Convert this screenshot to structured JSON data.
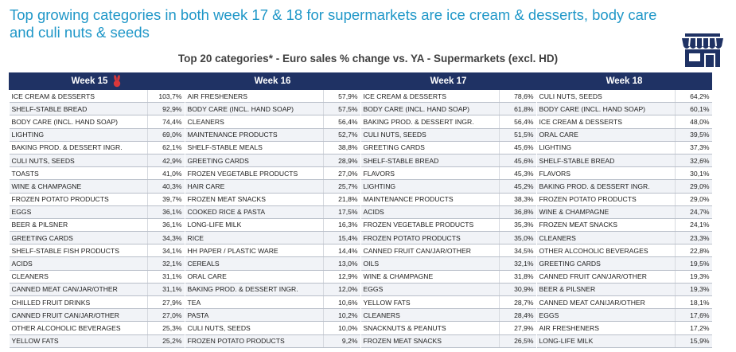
{
  "headline": "Top growing categories in both week 17 & 18 for supermarkets are ice cream & desserts, body care and culi nuts & seeds",
  "chart_data": {
    "type": "table",
    "title": "Top 20 categories* - Euro sales % change vs. YA - Supermarkets (excl. HD)",
    "weeks": [
      {
        "label": "Week 15",
        "rows": [
          {
            "category": "ICE CREAM & DESSERTS",
            "value": "103,7%"
          },
          {
            "category": "SHELF-STABLE BREAD",
            "value": "92,9%"
          },
          {
            "category": "BODY CARE (incl. hand soap)",
            "value": "74,4%"
          },
          {
            "category": "LIGHTING",
            "value": "69,0%"
          },
          {
            "category": "BAKING PROD. & DESSERT INGR.",
            "value": "62,1%"
          },
          {
            "category": "CULI NUTS, SEEDS",
            "value": "42,9%"
          },
          {
            "category": "TOASTS",
            "value": "41,0%"
          },
          {
            "category": "WINE & CHAMPAGNE",
            "value": "40,3%"
          },
          {
            "category": "FROZEN POTATO PRODUCTS",
            "value": "39,7%"
          },
          {
            "category": "EGGS",
            "value": "36,1%"
          },
          {
            "category": "BEER & PILSNER",
            "value": "36,1%"
          },
          {
            "category": "GREETING CARDS",
            "value": "34,3%"
          },
          {
            "category": "SHELF-STABLE FISH PRODUCTS",
            "value": "34,1%"
          },
          {
            "category": "ACIDS",
            "value": "32,1%"
          },
          {
            "category": "CLEANERS",
            "value": "31,1%"
          },
          {
            "category": "CANNED MEAT CAN/JAR/OTHER",
            "value": "31,1%"
          },
          {
            "category": "CHILLED FRUIT DRINKS",
            "value": "27,9%"
          },
          {
            "category": "CANNED FRUIT CAN/JAR/OTHER",
            "value": "27,0%"
          },
          {
            "category": "OTHER ALCOHOLIC BEVERAGES",
            "value": "25,3%"
          },
          {
            "category": "YELLOW FATS",
            "value": "25,2%"
          }
        ]
      },
      {
        "label": "Week 16",
        "rows": [
          {
            "category": "AIR FRESHENERS",
            "value": "57,9%"
          },
          {
            "category": "BODY CARE (incl. hand soap)",
            "value": "57,5%"
          },
          {
            "category": "CLEANERS",
            "value": "56,4%"
          },
          {
            "category": "MAINTENANCE PRODUCTS",
            "value": "52,7%"
          },
          {
            "category": "SHELF-STABLE MEALS",
            "value": "38,8%"
          },
          {
            "category": "GREETING CARDS",
            "value": "28,9%"
          },
          {
            "category": "FROZEN VEGETABLE PRODUCTS",
            "value": "27,0%"
          },
          {
            "category": "HAIR CARE",
            "value": "25,7%"
          },
          {
            "category": "FROZEN MEAT SNACKS",
            "value": "21,8%"
          },
          {
            "category": "COOKED RICE & PASTA",
            "value": "17,5%"
          },
          {
            "category": "LONG-LIFE MILK",
            "value": "16,3%"
          },
          {
            "category": "RICE",
            "value": "15,4%"
          },
          {
            "category": "HH PAPER / PLASTIC WARE",
            "value": "14,4%"
          },
          {
            "category": "CEREALS",
            "value": "13,0%"
          },
          {
            "category": "ORAL CARE",
            "value": "12,9%"
          },
          {
            "category": "BAKING PROD. & DESSERT INGR.",
            "value": "12,0%"
          },
          {
            "category": "TEA",
            "value": "10,6%"
          },
          {
            "category": "PASTA",
            "value": "10,2%"
          },
          {
            "category": "CULI NUTS, SEEDS",
            "value": "10,0%"
          },
          {
            "category": "FROZEN POTATO PRODUCTS",
            "value": "9,2%"
          }
        ]
      },
      {
        "label": "Week 17",
        "rows": [
          {
            "category": "ICE CREAM & DESSERTS",
            "value": "78,6%"
          },
          {
            "category": "BODY CARE (incl. hand soap)",
            "value": "61,8%"
          },
          {
            "category": "BAKING PROD. & DESSERT INGR.",
            "value": "56,4%"
          },
          {
            "category": "CULI NUTS, SEEDS",
            "value": "51,5%"
          },
          {
            "category": "GREETING CARDS",
            "value": "45,6%"
          },
          {
            "category": "SHELF-STABLE BREAD",
            "value": "45,6%"
          },
          {
            "category": "FLAVORS",
            "value": "45,3%"
          },
          {
            "category": "LIGHTING",
            "value": "45,2%"
          },
          {
            "category": "MAINTENANCE PRODUCTS",
            "value": "38,3%"
          },
          {
            "category": "ACIDS",
            "value": "36,8%"
          },
          {
            "category": "FROZEN VEGETABLE PRODUCTS",
            "value": "35,3%"
          },
          {
            "category": "FROZEN POTATO PRODUCTS",
            "value": "35,0%"
          },
          {
            "category": "CANNED FRUIT CAN/JAR/OTHER",
            "value": "34,5%"
          },
          {
            "category": "OILS",
            "value": "32,1%"
          },
          {
            "category": "WINE & CHAMPAGNE",
            "value": "31,8%"
          },
          {
            "category": "EGGS",
            "value": "30,9%"
          },
          {
            "category": "YELLOW FATS",
            "value": "28,7%"
          },
          {
            "category": "CLEANERS",
            "value": "28,4%"
          },
          {
            "category": "SNACKNUTS & PEANUTS",
            "value": "27,9%"
          },
          {
            "category": "FROZEN MEAT SNACKS",
            "value": "26,5%"
          }
        ]
      },
      {
        "label": "Week 18",
        "rows": [
          {
            "category": "CULI NUTS, SEEDS",
            "value": "64,2%"
          },
          {
            "category": "BODY CARE (incl. hand soap)",
            "value": "60,1%"
          },
          {
            "category": "ICE CREAM & DESSERTS",
            "value": "48,0%"
          },
          {
            "category": "ORAL CARE",
            "value": "39,5%"
          },
          {
            "category": "LIGHTING",
            "value": "37,3%"
          },
          {
            "category": "SHELF-STABLE BREAD",
            "value": "32,6%"
          },
          {
            "category": "FLAVORS",
            "value": "30,1%"
          },
          {
            "category": "BAKING PROD. & DESSERT INGR.",
            "value": "29,0%"
          },
          {
            "category": "FROZEN POTATO PRODUCTS",
            "value": "29,0%"
          },
          {
            "category": "WINE & CHAMPAGNE",
            "value": "24,7%"
          },
          {
            "category": "FROZEN MEAT SNACKS",
            "value": "24,1%"
          },
          {
            "category": "CLEANERS",
            "value": "23,3%"
          },
          {
            "category": "OTHER ALCOHOLIC BEVERAGES",
            "value": "22,8%"
          },
          {
            "category": "GREETING CARDS",
            "value": "19,5%"
          },
          {
            "category": "CANNED FRUIT CAN/JAR/OTHER",
            "value": "19,3%"
          },
          {
            "category": "BEER & PILSNER",
            "value": "19,3%"
          },
          {
            "category": "CANNED MEAT CAN/JAR/OTHER",
            "value": "18,1%"
          },
          {
            "category": "EGGS",
            "value": "17,6%"
          },
          {
            "category": "AIR FRESHENERS",
            "value": "17,2%"
          },
          {
            "category": "LONG-LIFE MILK",
            "value": "15,9%"
          }
        ]
      }
    ]
  },
  "colors": {
    "headline": "#1f97c8",
    "header_bg": "#1f3264",
    "header_text": "#ffffff",
    "row_rule": "#b9bfc9",
    "bunny": "#d9373a"
  },
  "icons": {
    "store": "storefront-icon",
    "week15_marker": "bunny-icon"
  }
}
